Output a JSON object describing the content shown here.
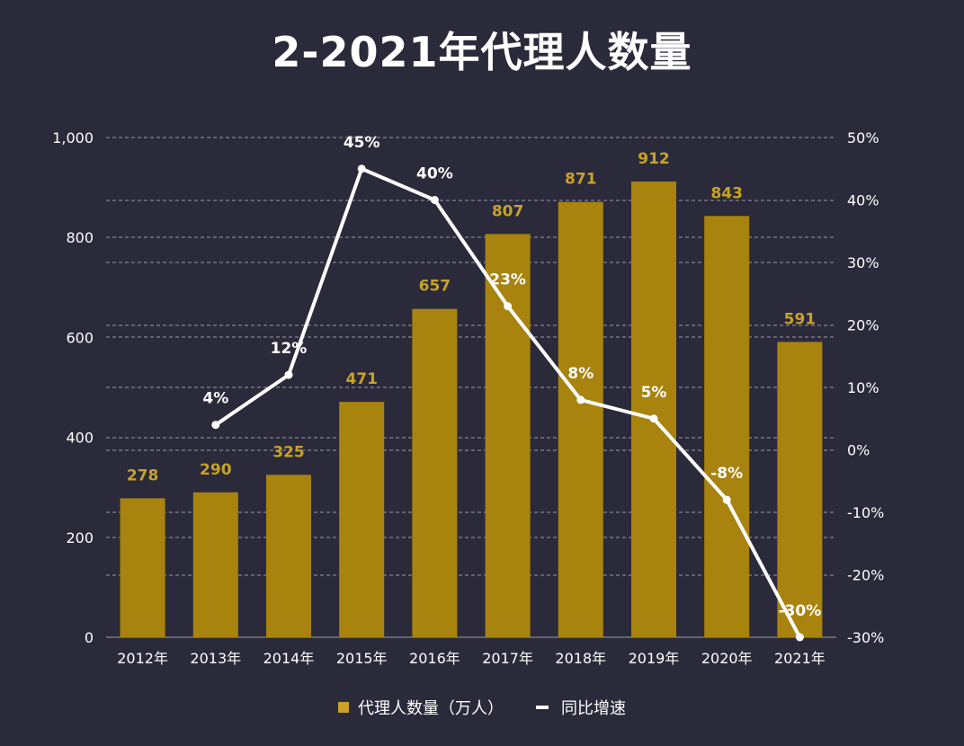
{
  "chart_data": {
    "type": "bar+line",
    "title": "2-2021年代理人数量",
    "categories": [
      "2012年",
      "2013年",
      "2014年",
      "2015年",
      "2016年",
      "2017年",
      "2018年",
      "2019年",
      "2020年",
      "2021年"
    ],
    "series": [
      {
        "name": "代理人数量（万人）",
        "type": "bar",
        "axis": "left",
        "values": [
          278,
          290,
          325,
          471,
          657,
          807,
          871,
          912,
          843,
          591
        ],
        "labels": [
          "278",
          "290",
          "325",
          "471",
          "657",
          "807",
          "871",
          "912",
          "843",
          "591"
        ],
        "color": "#a8830e",
        "label_color": "#c9a227"
      },
      {
        "name": "同比增速",
        "type": "line",
        "axis": "right",
        "values": [
          null,
          4,
          12,
          45,
          40,
          23,
          8,
          5,
          -8,
          -30
        ],
        "labels": [
          "",
          "4%",
          "12%",
          "45%",
          "40%",
          "23%",
          "8%",
          "5%",
          "-8%",
          "-30%"
        ],
        "color": "#ffffff"
      }
    ],
    "left_axis": {
      "range": [
        0,
        1000
      ],
      "ticks": [
        "0",
        "200",
        "400",
        "600",
        "800",
        "1,000"
      ],
      "tick_values": [
        0,
        200,
        400,
        600,
        800,
        1000
      ]
    },
    "right_axis": {
      "range": [
        -30,
        50
      ],
      "ticks": [
        "-30%",
        "-20%",
        "-10%",
        "0%",
        "10%",
        "20%",
        "30%",
        "40%",
        "50%"
      ],
      "tick_values": [
        -30,
        -20,
        -10,
        0,
        10,
        20,
        30,
        40,
        50
      ]
    },
    "grid": "dashed horizontal",
    "legend": "bottom",
    "background": "#2a2a3a"
  }
}
